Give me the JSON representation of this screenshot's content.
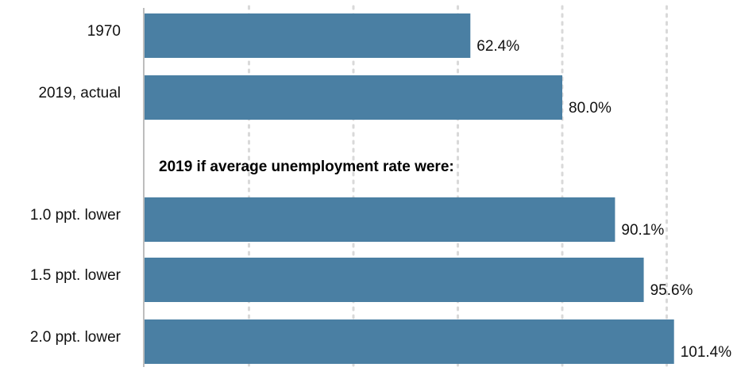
{
  "chart_data": {
    "type": "bar",
    "orientation": "horizontal",
    "categories": [
      "1970",
      "2019, actual",
      "1.0 ppt. lower",
      "1.5 ppt. lower",
      "2.0 ppt. lower"
    ],
    "values": [
      62.4,
      80.0,
      90.1,
      95.6,
      101.4
    ],
    "value_labels": [
      "62.4%",
      "80.0%",
      "90.1%",
      "95.6%",
      "101.4%"
    ],
    "group_heading": "2019 if average unemployment rate were:",
    "xlim": [
      0,
      105
    ],
    "bar_color": "#4a7fa3",
    "grid": "vertical dotted",
    "legend": "none"
  }
}
